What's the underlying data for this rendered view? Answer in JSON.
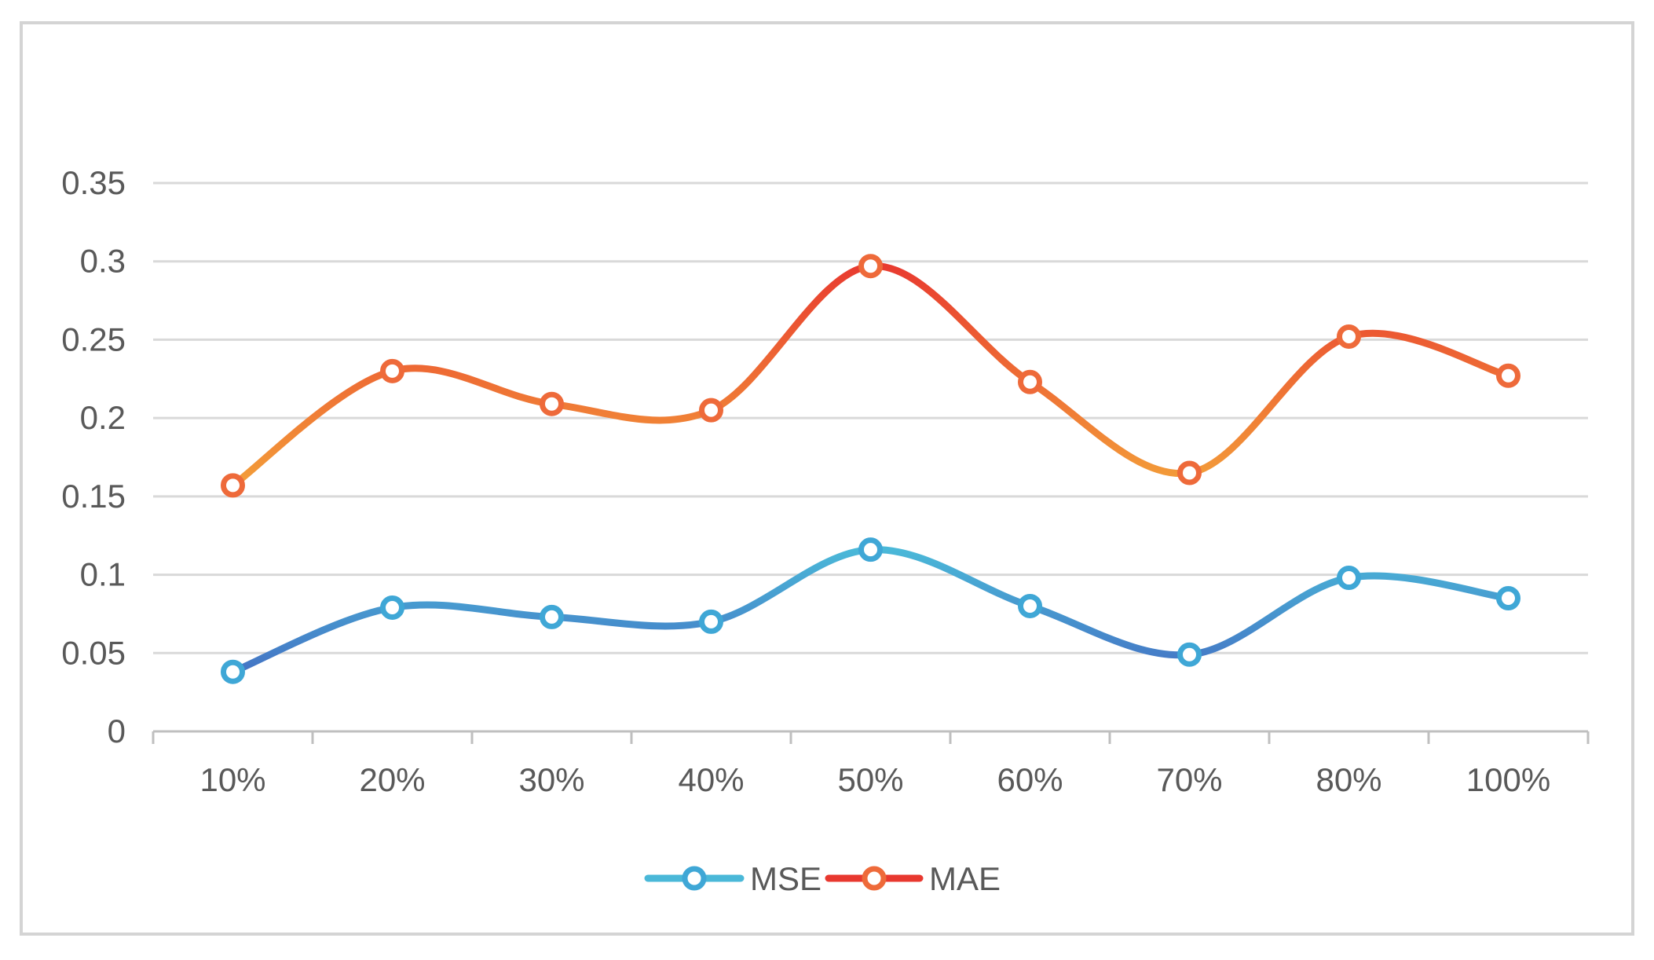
{
  "chart_data": {
    "type": "line",
    "smooth": true,
    "title": "",
    "xlabel": "",
    "ylabel": "",
    "categories": [
      "10%",
      "20%",
      "30%",
      "40%",
      "50%",
      "60%",
      "70%",
      "80%",
      "100%"
    ],
    "y_ticks": [
      "0",
      "0.05",
      "0.1",
      "0.15",
      "0.2",
      "0.25",
      "0.3",
      "0.35"
    ],
    "ylim": [
      0,
      0.35
    ],
    "grid": true,
    "legend_position": "bottom",
    "series": [
      {
        "name": "MSE",
        "values": [
          0.038,
          0.079,
          0.073,
          0.07,
          0.116,
          0.08,
          0.049,
          0.098,
          0.085
        ],
        "color_start": "#4472c4",
        "color_end": "#4ab8d8",
        "marker_color": "#3fa7d6"
      },
      {
        "name": "MAE",
        "values": [
          0.157,
          0.23,
          0.209,
          0.205,
          0.297,
          0.223,
          0.165,
          0.252,
          0.227
        ],
        "color_start": "#f4a63a",
        "color_end": "#e8382f",
        "marker_color": "#ee6a3a"
      }
    ]
  }
}
